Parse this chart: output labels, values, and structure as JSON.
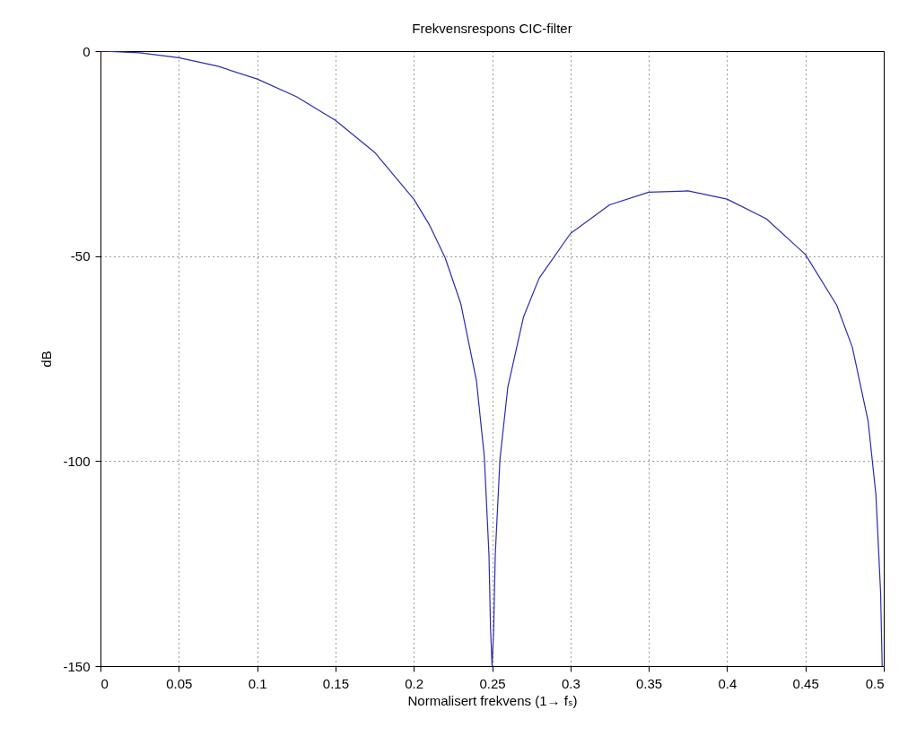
{
  "chart_data": {
    "type": "line",
    "title": "Frekvensrespons CIC-filter",
    "xlabel": "Normalisert frekvens (1→ fₛ)",
    "ylabel": "dB",
    "xlim": [
      0,
      0.5
    ],
    "xticks": [
      0,
      0.05,
      0.1,
      0.15,
      0.2,
      0.25,
      0.3,
      0.35,
      0.4,
      0.45,
      0.5
    ],
    "ylim": [
      -150,
      0
    ],
    "yticks": [
      -150,
      -100,
      -50,
      0
    ],
    "grid": true,
    "series": [
      {
        "color": "#2b2bb0",
        "x": [
          0,
          0.025,
          0.05,
          0.075,
          0.1,
          0.125,
          0.15,
          0.175,
          0.2,
          0.21,
          0.22,
          0.23,
          0.24,
          0.245,
          0.248,
          0.249,
          0.25,
          0.251,
          0.252,
          0.255,
          0.26,
          0.27,
          0.28,
          0.3,
          0.325,
          0.35,
          0.375,
          0.4,
          0.425,
          0.45,
          0.47,
          0.48,
          0.49,
          0.495,
          0.498,
          0.499
        ],
        "values": [
          0,
          -0.4,
          -1.6,
          -3.7,
          -6.8,
          -11.1,
          -16.9,
          -24.7,
          -36.1,
          -42.4,
          -50.4,
          -61.6,
          -80.4,
          -98.8,
          -122.9,
          -141.1,
          -150,
          -141,
          -123,
          -99.6,
          -82,
          -64.9,
          -55.4,
          -44.5,
          -37.5,
          -34.4,
          -34.1,
          -36.1,
          -40.9,
          -49.6,
          -62,
          -72.3,
          -90.2,
          -108.2,
          -132.1,
          -150
        ]
      }
    ]
  }
}
